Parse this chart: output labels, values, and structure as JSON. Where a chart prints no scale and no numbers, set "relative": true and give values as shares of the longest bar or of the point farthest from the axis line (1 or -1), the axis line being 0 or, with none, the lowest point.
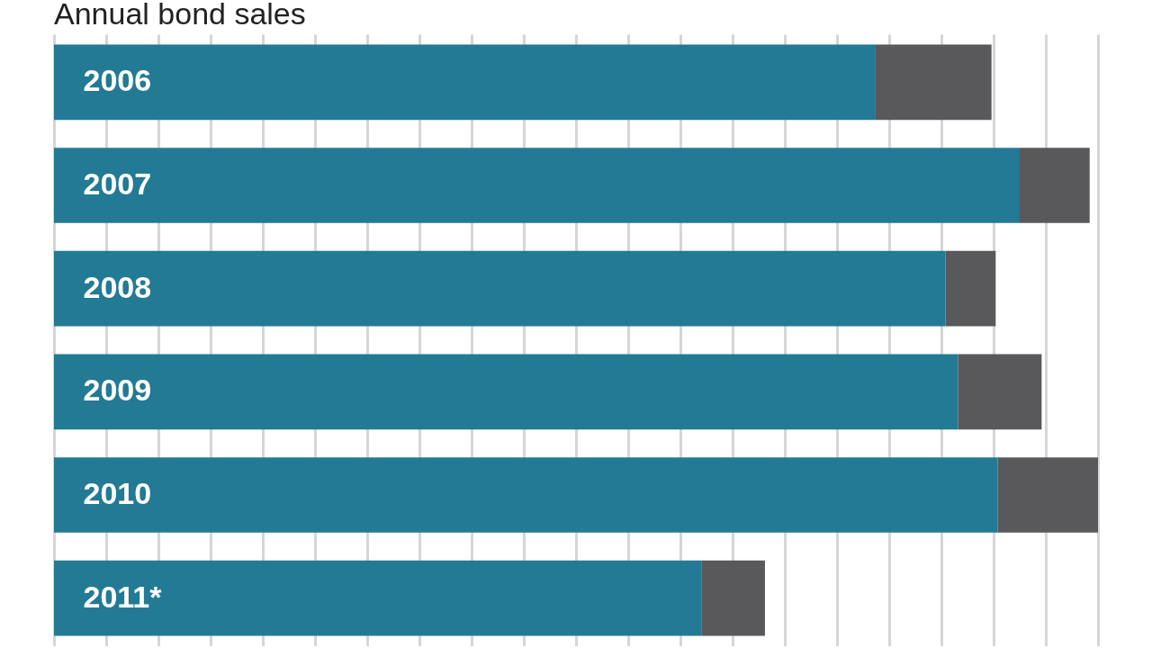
{
  "chart_data": {
    "type": "bar",
    "title": "Annual bond sales",
    "orientation": "horizontal",
    "stacked": true,
    "relative": true,
    "grid": "x",
    "legend": false,
    "categories": [
      "2006",
      "2007",
      "2008",
      "2009",
      "2010",
      "2011*"
    ],
    "series": [
      {
        "color": "#237a94",
        "values": [
          0.787,
          0.925,
          0.854,
          0.866,
          0.904,
          0.62
        ]
      },
      {
        "color": "#59585a",
        "values": [
          0.111,
          0.067,
          0.048,
          0.08,
          0.096,
          0.061
        ]
      }
    ]
  }
}
